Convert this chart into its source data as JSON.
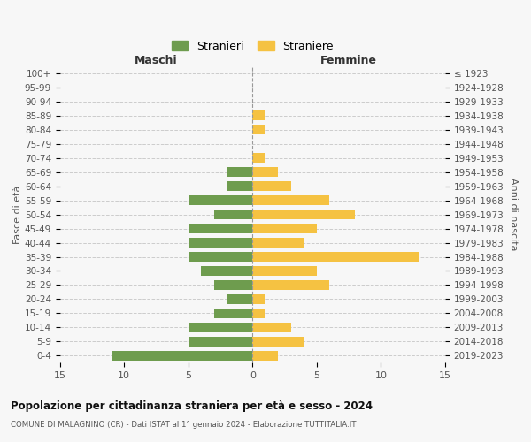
{
  "age_groups": [
    "100+",
    "95-99",
    "90-94",
    "85-89",
    "80-84",
    "75-79",
    "70-74",
    "65-69",
    "60-64",
    "55-59",
    "50-54",
    "45-49",
    "40-44",
    "35-39",
    "30-34",
    "25-29",
    "20-24",
    "15-19",
    "10-14",
    "5-9",
    "0-4"
  ],
  "birth_years": [
    "≤ 1923",
    "1924-1928",
    "1929-1933",
    "1934-1938",
    "1939-1943",
    "1944-1948",
    "1949-1953",
    "1954-1958",
    "1959-1963",
    "1964-1968",
    "1969-1973",
    "1974-1978",
    "1979-1983",
    "1984-1988",
    "1989-1993",
    "1994-1998",
    "1999-2003",
    "2004-2008",
    "2009-2013",
    "2014-2018",
    "2019-2023"
  ],
  "males": [
    0,
    0,
    0,
    0,
    0,
    0,
    0,
    2,
    2,
    5,
    3,
    5,
    5,
    5,
    4,
    3,
    2,
    3,
    5,
    5,
    11
  ],
  "females": [
    0,
    0,
    0,
    1,
    1,
    0,
    1,
    2,
    3,
    6,
    8,
    5,
    4,
    13,
    5,
    6,
    1,
    1,
    3,
    4,
    2
  ],
  "male_color": "#6e9c4e",
  "female_color": "#f5c242",
  "background_color": "#f7f7f7",
  "grid_color": "#cccccc",
  "title": "Popolazione per cittadinanza straniera per età e sesso - 2024",
  "subtitle": "COMUNE DI MALAGNINO (CR) - Dati ISTAT al 1° gennaio 2024 - Elaborazione TUTTITALIA.IT",
  "xlabel_left": "Maschi",
  "xlabel_right": "Femmine",
  "ylabel_left": "Fasce di età",
  "ylabel_right": "Anni di nascita",
  "legend_males": "Stranieri",
  "legend_females": "Straniere",
  "xlim": 15,
  "bar_height": 0.7
}
